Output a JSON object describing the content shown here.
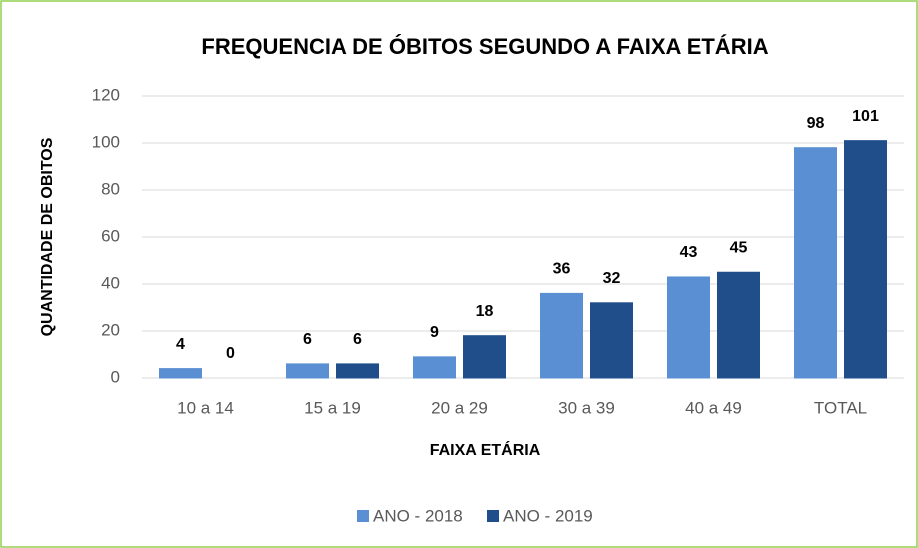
{
  "chart_data": {
    "type": "bar",
    "title": "FREQUENCIA DE ÓBITOS SEGUNDO A FAIXA ETÁRIA",
    "x_label": "FAIXA ETÁRIA",
    "y_label": "QUANTIDADE DE OBITOS",
    "categories": [
      "10 a 14",
      "15 a 19",
      "20 a 29",
      "30 a 39",
      "40 a 49",
      "TOTAL"
    ],
    "series": [
      {
        "name": "ANO - 2018",
        "color": "#5b8fd3",
        "values": [
          4,
          6,
          9,
          36,
          43,
          98
        ]
      },
      {
        "name": "ANO - 2019",
        "color": "#1f4e8a",
        "values": [
          0,
          6,
          18,
          32,
          45,
          101
        ]
      }
    ],
    "ylim": [
      0,
      120
    ],
    "yticks": [
      0,
      20,
      40,
      60,
      80,
      100,
      120
    ],
    "grid": true,
    "legend": "bottom"
  }
}
